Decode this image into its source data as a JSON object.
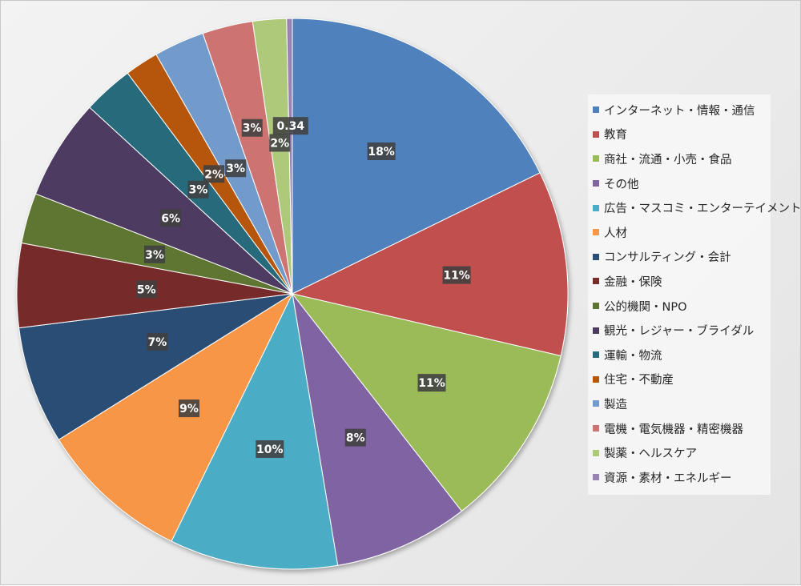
{
  "chart_data": {
    "type": "pie",
    "title": "",
    "legend_position": "right",
    "slices": [
      {
        "name": "インターネット・情報・通信",
        "label": "18%",
        "value": 18,
        "color": "#4F81BD"
      },
      {
        "name": "教育",
        "label": "11%",
        "value": 11,
        "color": "#C0504D"
      },
      {
        "name": "商社・流通・小売・食品",
        "label": "11%",
        "value": 11,
        "color": "#9BBB59"
      },
      {
        "name": "その他",
        "label": "8%",
        "value": 8,
        "color": "#8064A2"
      },
      {
        "name": "広告・マスコミ・エンターテイメント",
        "label": "10%",
        "value": 10,
        "color": "#4BACC6"
      },
      {
        "name": "人材",
        "label": "9%",
        "value": 9,
        "color": "#F79646"
      },
      {
        "name": "コンサルティング・会計",
        "label": "7%",
        "value": 7,
        "color": "#2C4D75"
      },
      {
        "name": "金融・保険",
        "label": "5%",
        "value": 5,
        "color": "#772C2A"
      },
      {
        "name": "公的機関・NPO",
        "label": "3%",
        "value": 3,
        "color": "#5F7530"
      },
      {
        "name": "観光・レジャー・ブライダル",
        "label": "6%",
        "value": 6,
        "color": "#4D3B62"
      },
      {
        "name": "運輸・物流",
        "label": "3%",
        "value": 3,
        "color": "#276A7C"
      },
      {
        "name": "住宅・不動産",
        "label": "2%",
        "value": 2,
        "color": "#B65708"
      },
      {
        "name": "製造",
        "label": "3%",
        "value": 3,
        "color": "#729ACA"
      },
      {
        "name": "電機・電気機器・精密機器",
        "label": "3%",
        "value": 3,
        "color": "#CD7371"
      },
      {
        "name": "製薬・ヘルスケア",
        "label": "2%",
        "value": 2,
        "color": "#AFC97A"
      },
      {
        "name": "資源・素材・エネルギー",
        "label": "0.34",
        "value": 0.34,
        "color": "#9983B5"
      }
    ]
  }
}
